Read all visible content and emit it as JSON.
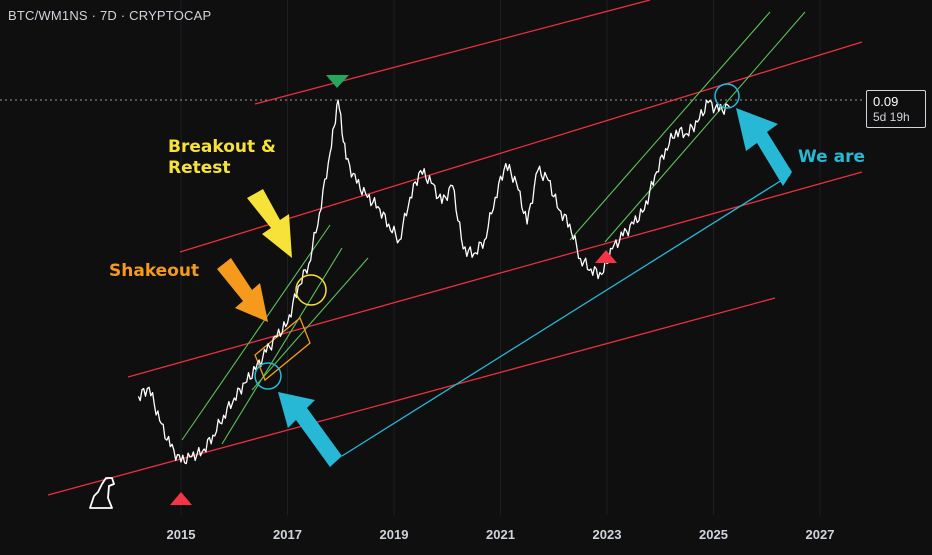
{
  "header": {
    "symbol_line": "BTC/WM1NS · 7D · CRYPTOCAP"
  },
  "price_label": {
    "price": "0.09",
    "countdown": "5d 19h"
  },
  "annotations": {
    "breakout_line1": "Breakout &",
    "breakout_line2": "Retest",
    "shakeout": "Shakeout",
    "we_are": "We are"
  },
  "colors": {
    "background": "#0f0f0f",
    "price_line": "#ffffff",
    "channel_red": "#e8303f",
    "channel_green": "#5cc15a",
    "cyan": "#27b8d6",
    "yellow": "#f7e23a",
    "orange": "#f59a1c"
  },
  "chart_data": {
    "type": "line",
    "title": "BTC/WM1NS · 7D · CRYPTOCAP",
    "xlabel": "",
    "ylabel": "",
    "x_ticks": [
      "2015",
      "2017",
      "2019",
      "2021",
      "2023",
      "2025",
      "2027"
    ],
    "current_value": 0.09,
    "series": [
      {
        "x": [
          2014.2,
          2014.4,
          2014.6,
          2014.8,
          2015.0,
          2015.2,
          2015.4,
          2015.6,
          2015.8,
          2016.0,
          2016.2,
          2016.4,
          2016.6,
          2016.8,
          2017.0,
          2017.2,
          2017.4,
          2017.6,
          2017.8,
          2017.95,
          2018.1,
          2018.3,
          2018.5,
          2018.7,
          2018.9,
          2019.1,
          2019.3,
          2019.5,
          2019.7,
          2019.9,
          2020.1,
          2020.3,
          2020.5,
          2020.7,
          2020.9,
          2021.1,
          2021.3,
          2021.5,
          2021.7,
          2021.9,
          2022.1,
          2022.3,
          2022.5,
          2022.7,
          2022.9,
          2023.1,
          2023.3,
          2023.5,
          2023.7,
          2023.9,
          2024.1,
          2024.3,
          2024.5,
          2024.7,
          2024.9,
          2025.1,
          2025.3
        ],
        "y": [
          0.0076,
          0.0082,
          0.0062,
          0.005,
          0.0044,
          0.0046,
          0.0048,
          0.0055,
          0.0065,
          0.0075,
          0.0085,
          0.0095,
          0.011,
          0.0125,
          0.014,
          0.019,
          0.023,
          0.035,
          0.058,
          0.09,
          0.055,
          0.045,
          0.04,
          0.037,
          0.032,
          0.028,
          0.04,
          0.05,
          0.045,
          0.038,
          0.044,
          0.026,
          0.025,
          0.028,
          0.04,
          0.053,
          0.045,
          0.032,
          0.05,
          0.046,
          0.036,
          0.032,
          0.024,
          0.022,
          0.021,
          0.026,
          0.029,
          0.032,
          0.036,
          0.048,
          0.06,
          0.07,
          0.068,
          0.075,
          0.088,
          0.082,
          0.085
        ]
      }
    ]
  }
}
